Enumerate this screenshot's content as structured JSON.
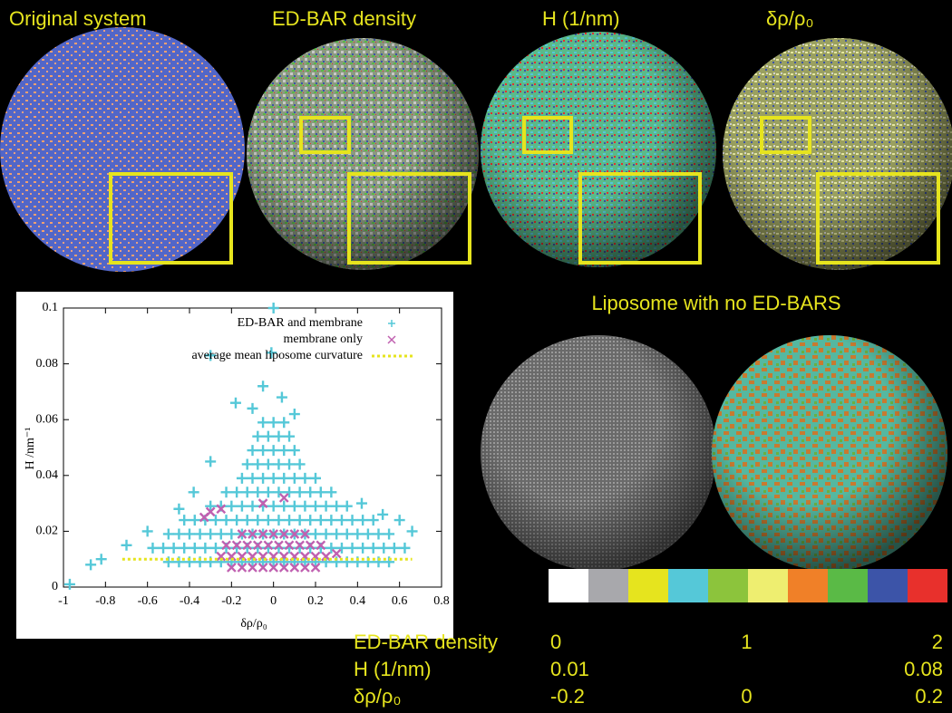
{
  "panels": [
    {
      "title": "Original system"
    },
    {
      "title": "ED-BAR density"
    },
    {
      "title": "H (1/nm)"
    },
    {
      "title": "δρ/ρ₀"
    }
  ],
  "liposome_title": "Liposome with no ED-BARS",
  "colorbar": {
    "colors": [
      "#ffffff",
      "#a8a8ac",
      "#e6e41e",
      "#55c8d8",
      "#8cc43c",
      "#eeee70",
      "#f08028",
      "#5aba46",
      "#3c54a8",
      "#e8302c"
    ],
    "scales": [
      {
        "label": "ED-BAR density",
        "ticks": [
          0,
          1,
          2
        ]
      },
      {
        "label": "H (1/nm)",
        "ticks": [
          0.01,
          0.08
        ]
      },
      {
        "label": "δρ/ρ₀",
        "ticks": [
          -0.2,
          0,
          0.2
        ]
      }
    ]
  },
  "chart_data": {
    "type": "scatter",
    "x_label": "δρ/ρ₀",
    "y_label": "H /nm⁻¹",
    "xlim": [
      -1,
      0.8
    ],
    "ylim": [
      0,
      0.1
    ],
    "xticks": [
      -1,
      -0.8,
      -0.6,
      -0.4,
      -0.2,
      0,
      0.2,
      0.4,
      0.6,
      0.8
    ],
    "yticks": [
      0,
      0.02,
      0.04,
      0.06,
      0.08,
      0.1
    ],
    "legend": "top-right",
    "series": [
      {
        "name": "ED-BAR and membrane",
        "color": "#55c8d8",
        "marker": "+",
        "x": [
          -0.5,
          -0.45,
          -0.4,
          -0.35,
          -0.3,
          -0.25,
          -0.2,
          -0.15,
          -0.1,
          -0.05,
          0,
          0.05,
          0.1,
          0.15,
          0.2,
          0.25,
          0.3,
          0.35,
          0.4,
          0.45,
          0.5,
          0.55,
          -0.575,
          -0.525,
          -0.475,
          -0.425,
          -0.375,
          -0.325,
          -0.275,
          -0.225,
          -0.175,
          -0.125,
          -0.075,
          -0.025,
          0.025,
          0.075,
          0.125,
          0.175,
          0.225,
          0.275,
          0.325,
          0.375,
          0.425,
          0.475,
          0.525,
          0.575,
          0.625,
          -0.5,
          -0.45,
          -0.4,
          -0.35,
          -0.3,
          -0.25,
          -0.2,
          -0.15,
          -0.1,
          -0.05,
          0,
          0.05,
          0.1,
          0.15,
          0.2,
          0.25,
          0.3,
          0.35,
          0.4,
          0.45,
          0.5,
          0.55,
          -0.425,
          -0.375,
          -0.325,
          -0.275,
          -0.225,
          -0.175,
          -0.125,
          -0.075,
          -0.025,
          0.025,
          0.075,
          0.125,
          0.175,
          0.225,
          0.275,
          0.325,
          0.375,
          0.425,
          0.475,
          -0.3,
          -0.25,
          -0.2,
          -0.15,
          -0.1,
          -0.05,
          0,
          0.05,
          0.1,
          0.15,
          0.2,
          0.25,
          0.3,
          0.35,
          -0.225,
          -0.175,
          -0.125,
          -0.075,
          -0.025,
          0.025,
          0.075,
          0.125,
          0.175,
          0.225,
          0.275,
          -0.15,
          -0.1,
          -0.05,
          0,
          0.05,
          0.1,
          0.15,
          0.2,
          -0.125,
          -0.075,
          -0.025,
          0.025,
          0.075,
          0.125,
          -0.1,
          -0.05,
          0,
          0.05,
          0.1,
          -0.075,
          -0.025,
          0.025,
          0.075,
          -0.05,
          0,
          0.05,
          -0.97,
          -0.87,
          -0.82,
          -0.7,
          -0.6,
          -0.45,
          -0.38,
          0.42,
          0.52,
          0.6,
          0.66,
          -0.3,
          -0.18,
          -0.1,
          0.04,
          0.1,
          -0.05,
          -0.01,
          -0.3,
          0
        ],
        "values": [
          0.009,
          0.009,
          0.009,
          0.009,
          0.009,
          0.009,
          0.009,
          0.009,
          0.009,
          0.009,
          0.009,
          0.009,
          0.009,
          0.009,
          0.009,
          0.009,
          0.009,
          0.009,
          0.009,
          0.009,
          0.009,
          0.009,
          0.014,
          0.014,
          0.014,
          0.014,
          0.014,
          0.014,
          0.014,
          0.014,
          0.014,
          0.014,
          0.014,
          0.014,
          0.014,
          0.014,
          0.014,
          0.014,
          0.014,
          0.014,
          0.014,
          0.014,
          0.014,
          0.014,
          0.014,
          0.014,
          0.014,
          0.019,
          0.019,
          0.019,
          0.019,
          0.019,
          0.019,
          0.019,
          0.019,
          0.019,
          0.019,
          0.019,
          0.019,
          0.019,
          0.019,
          0.019,
          0.019,
          0.019,
          0.019,
          0.019,
          0.019,
          0.019,
          0.019,
          0.024,
          0.024,
          0.024,
          0.024,
          0.024,
          0.024,
          0.024,
          0.024,
          0.024,
          0.024,
          0.024,
          0.024,
          0.024,
          0.024,
          0.024,
          0.024,
          0.024,
          0.024,
          0.024,
          0.029,
          0.029,
          0.029,
          0.029,
          0.029,
          0.029,
          0.029,
          0.029,
          0.029,
          0.029,
          0.029,
          0.029,
          0.029,
          0.029,
          0.034,
          0.034,
          0.034,
          0.034,
          0.034,
          0.034,
          0.034,
          0.034,
          0.034,
          0.034,
          0.034,
          0.039,
          0.039,
          0.039,
          0.039,
          0.039,
          0.039,
          0.039,
          0.039,
          0.044,
          0.044,
          0.044,
          0.044,
          0.044,
          0.044,
          0.049,
          0.049,
          0.049,
          0.049,
          0.049,
          0.054,
          0.054,
          0.054,
          0.054,
          0.059,
          0.059,
          0.059,
          0.001,
          0.008,
          0.01,
          0.015,
          0.02,
          0.028,
          0.034,
          0.03,
          0.026,
          0.024,
          0.02,
          0.045,
          0.066,
          0.064,
          0.068,
          0.062,
          0.072,
          0.084,
          0.083,
          0.1
        ]
      },
      {
        "name": "membrane only",
        "color": "#c060b0",
        "marker": "x",
        "x": [
          -0.2,
          -0.15,
          -0.1,
          -0.05,
          0,
          0.05,
          0.1,
          0.15,
          0.2,
          -0.25,
          -0.2,
          -0.15,
          -0.1,
          -0.05,
          0,
          0.05,
          0.1,
          0.15,
          0.2,
          0.25,
          -0.225,
          -0.175,
          -0.125,
          -0.075,
          -0.025,
          0.025,
          0.075,
          0.125,
          0.175,
          0.225,
          -0.15,
          -0.1,
          -0.05,
          0,
          0.05,
          0.1,
          0.15,
          -0.3,
          -0.25,
          -0.33,
          0.05,
          -0.05,
          0.3
        ],
        "values": [
          0.007,
          0.007,
          0.007,
          0.007,
          0.007,
          0.007,
          0.007,
          0.007,
          0.007,
          0.011,
          0.011,
          0.011,
          0.011,
          0.011,
          0.011,
          0.011,
          0.011,
          0.011,
          0.011,
          0.011,
          0.015,
          0.015,
          0.015,
          0.015,
          0.015,
          0.015,
          0.015,
          0.015,
          0.015,
          0.015,
          0.019,
          0.019,
          0.019,
          0.019,
          0.019,
          0.019,
          0.019,
          0.027,
          0.028,
          0.025,
          0.032,
          0.03,
          0.012
        ]
      },
      {
        "name": "average mean liposome curvature",
        "color": "#e6e41e",
        "marker": "dotted-line",
        "x": [
          -0.72,
          0.66
        ],
        "values": [
          0.01,
          0.01
        ]
      }
    ]
  }
}
